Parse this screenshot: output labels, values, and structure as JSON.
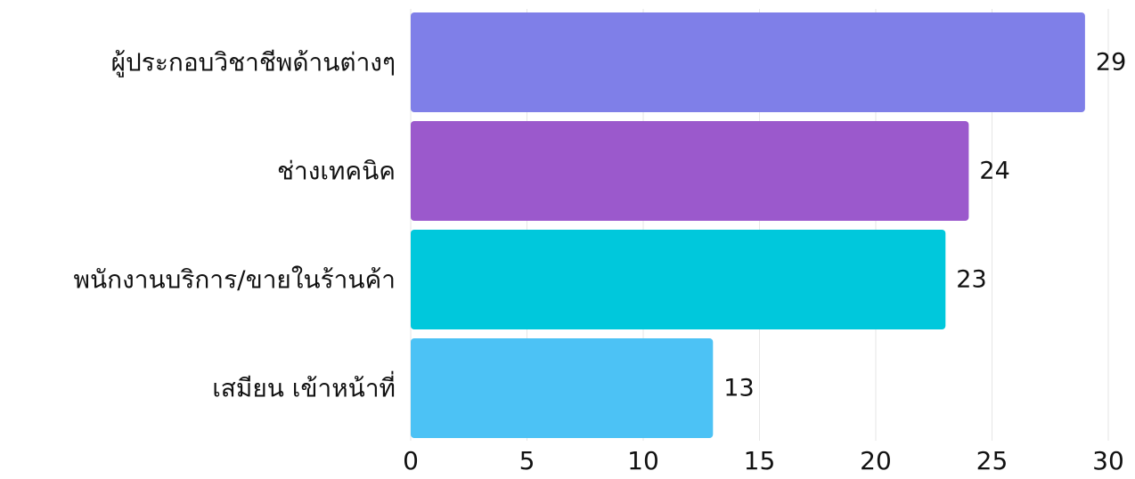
{
  "chart_data": {
    "type": "bar",
    "orientation": "horizontal",
    "categories": [
      "ผู้ประกอบวิชาชีพด้านต่างๆ",
      "ช่างเทคนิค",
      "พนักงานบริการ/ขายในร้านค้า",
      "เสมียน เข้าหน้าที่"
    ],
    "values": [
      29,
      24,
      23,
      13
    ],
    "colors": [
      "#7f7fe8",
      "#9b59cc",
      "#00c8dc",
      "#4cc2f5"
    ],
    "xlim": [
      0,
      30
    ],
    "xticks": [
      0,
      5,
      10,
      15,
      20,
      25,
      30
    ],
    "xtick_labels": [
      "0",
      "5",
      "10",
      "15",
      "20",
      "25",
      "30"
    ],
    "grid": true,
    "title": "",
    "xlabel": "",
    "ylabel": ""
  }
}
